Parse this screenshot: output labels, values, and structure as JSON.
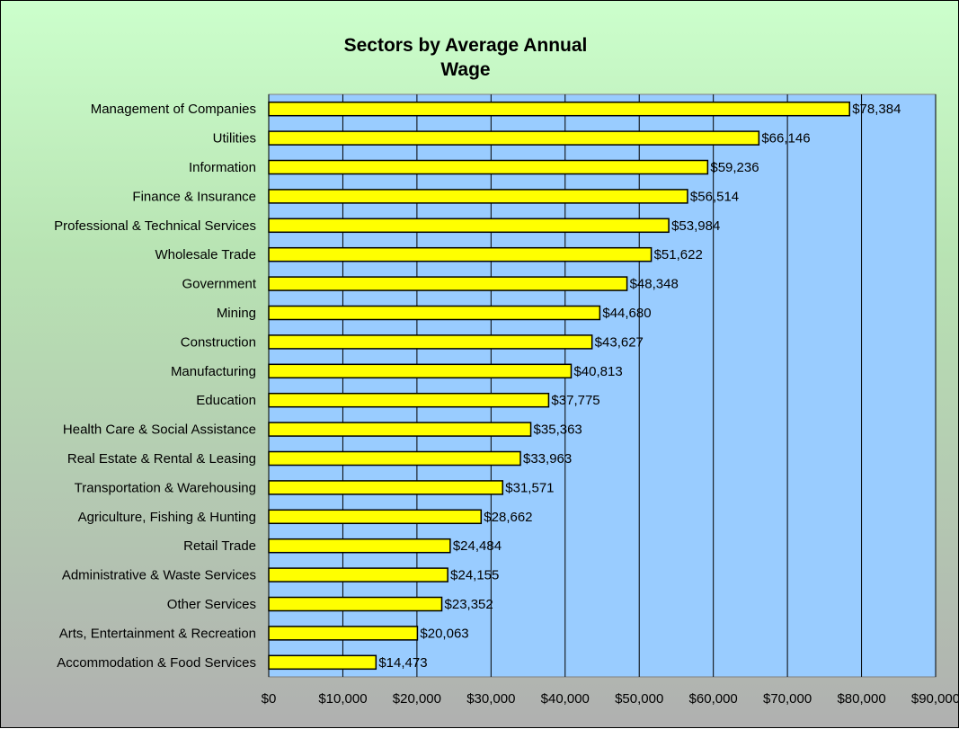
{
  "chart_data": {
    "type": "bar",
    "orientation": "horizontal",
    "title_lines": [
      "Sectors by Average Annual",
      "Wage"
    ],
    "categories": [
      "Management of Companies",
      "Utilities",
      "Information",
      "Finance & Insurance",
      "Professional & Technical Services",
      "Wholesale Trade",
      "Government",
      "Mining",
      "Construction",
      "Manufacturing",
      "Education",
      "Health Care & Social Assistance",
      "Real Estate & Rental & Leasing",
      "Transportation & Warehousing",
      "Agriculture, Fishing & Hunting",
      "Retail Trade",
      "Administrative & Waste Services",
      "Other Services",
      "Arts, Entertainment & Recreation",
      "Accommodation & Food Services"
    ],
    "values": [
      78384,
      66146,
      59236,
      56514,
      53984,
      51622,
      48348,
      44680,
      43627,
      40813,
      37775,
      35363,
      33963,
      31571,
      28662,
      24484,
      24155,
      23352,
      20063,
      14473
    ],
    "data_labels": [
      "$78,384",
      "$66,146",
      "$59,236",
      "$56,514",
      "$53,984",
      "$51,622",
      "$48,348",
      "$44,680",
      "$43,627",
      "$40,813",
      "$37,775",
      "$35,363",
      "$33,963",
      "$31,571",
      "$28,662",
      "$24,484",
      "$24,155",
      "$23,352",
      "$20,063",
      "$14,473"
    ],
    "xlim": [
      0,
      90000
    ],
    "x_ticks": [
      0,
      10000,
      20000,
      30000,
      40000,
      50000,
      60000,
      70000,
      80000,
      90000
    ],
    "x_tick_labels": [
      "$0",
      "$10,000",
      "$20,000",
      "$30,000",
      "$40,000",
      "$50,000",
      "$60,000",
      "$70,000",
      "$80,000",
      "$90,000"
    ],
    "xlabel": "",
    "ylabel": "",
    "grid": "vertical",
    "legend": "none",
    "colors": {
      "bar_fill": "#ffff00",
      "bar_stroke": "#000000",
      "plot_background": "#99ccff",
      "gridline": "#000000",
      "chart_background_top": "#ccffcc",
      "chart_background_bottom": "#b0b0b0"
    }
  }
}
